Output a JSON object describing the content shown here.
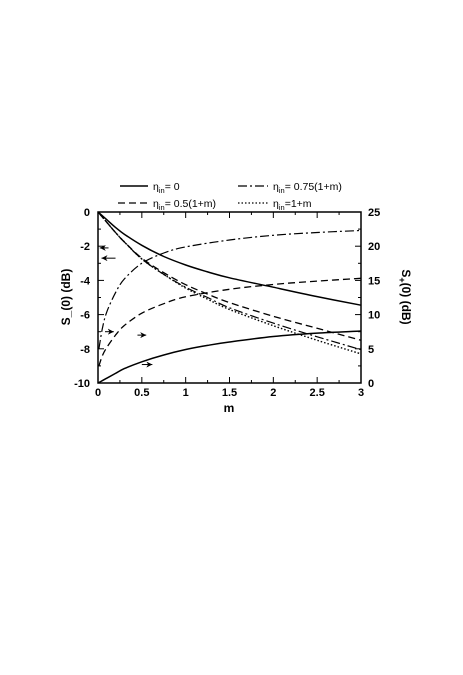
{
  "chart_data": {
    "type": "line",
    "title": "",
    "xlabel": "m",
    "ylabel_left": "S_(0)    (dB)",
    "ylabel_right_main": "S",
    "ylabel_right_sub": "+",
    "ylabel_right_rest": "(0)    (dB)",
    "xlim": [
      0,
      3
    ],
    "ylim_left": [
      -10,
      0
    ],
    "ylim_right": [
      0,
      25
    ],
    "xticks": [
      "0",
      "0.5",
      "1",
      "1.5",
      "2",
      "2.5",
      "3"
    ],
    "yticks_left": [
      "0",
      "-2",
      "-4",
      "-6",
      "-8",
      "-10"
    ],
    "yticks_right": [
      "25",
      "20",
      "15",
      "10",
      "5",
      "0"
    ],
    "grid": false,
    "legend_position": "top",
    "legend": [
      {
        "eta": "η",
        "sub": "in",
        "rest": "= 0",
        "style": "solid"
      },
      {
        "eta": "η",
        "sub": "in",
        "rest": "= 0.75(1+m)",
        "style": "dashdot"
      },
      {
        "eta": "η",
        "sub": "in",
        "rest": "= 0.5(1+m)",
        "style": "dashed"
      },
      {
        "eta": "η",
        "sub": "in",
        "rest": "=1+m",
        "style": "dotted"
      }
    ],
    "series": [
      {
        "style": "solid",
        "axis": "left",
        "x": [
          0,
          0.1,
          0.2,
          0.3,
          0.5,
          0.75,
          1,
          1.25,
          1.5,
          2,
          2.5,
          3
        ],
        "y": [
          0,
          -0.45,
          -0.9,
          -1.3,
          -1.95,
          -2.6,
          -3.1,
          -3.5,
          -3.85,
          -4.4,
          -4.95,
          -5.45
        ]
      },
      {
        "style": "dashdot",
        "axis": "left",
        "x": [
          0,
          0.1,
          0.2,
          0.3,
          0.5,
          0.75,
          1,
          1.25,
          1.5,
          2,
          2.5,
          3
        ],
        "y": [
          0,
          -0.6,
          -1.2,
          -1.75,
          -2.75,
          -3.65,
          -4.4,
          -5.0,
          -5.6,
          -6.5,
          -7.3,
          -8.05
        ]
      },
      {
        "style": "dashed",
        "axis": "left",
        "x": [
          0,
          0.1,
          0.2,
          0.3,
          0.5,
          0.75,
          1,
          1.25,
          1.5,
          2,
          2.5,
          3
        ],
        "y": [
          0,
          -0.6,
          -1.2,
          -1.75,
          -2.7,
          -3.55,
          -4.25,
          -4.8,
          -5.3,
          -6.1,
          -6.8,
          -7.5
        ]
      },
      {
        "style": "dotted",
        "axis": "left",
        "x": [
          0,
          0.1,
          0.2,
          0.3,
          0.5,
          0.75,
          1,
          1.25,
          1.5,
          2,
          2.5,
          3
        ],
        "y": [
          0,
          -0.6,
          -1.2,
          -1.75,
          -2.75,
          -3.65,
          -4.45,
          -5.1,
          -5.7,
          -6.65,
          -7.5,
          -8.3
        ]
      },
      {
        "style": "solid",
        "axis": "right",
        "x": [
          0,
          0.1,
          0.2,
          0.3,
          0.5,
          0.75,
          1,
          1.25,
          1.5,
          2,
          2.5,
          3
        ],
        "y": [
          0,
          0.7,
          1.4,
          2.1,
          3.1,
          4.1,
          4.9,
          5.5,
          6.0,
          6.8,
          7.3,
          7.6
        ]
      },
      {
        "style": "dashed",
        "axis": "right",
        "x": [
          0.01,
          0.05,
          0.1,
          0.2,
          0.3,
          0.5,
          0.75,
          1,
          1.5,
          2,
          2.5,
          3
        ],
        "y": [
          2.5,
          4.0,
          5.2,
          7.0,
          8.4,
          10.2,
          11.6,
          12.6,
          13.7,
          14.4,
          14.9,
          15.3
        ]
      },
      {
        "style": "dashdot",
        "axis": "right",
        "x": [
          0.01,
          0.05,
          0.1,
          0.2,
          0.3,
          0.5,
          0.75,
          1,
          1.5,
          2,
          2.5,
          3
        ],
        "y": [
          5.0,
          8.0,
          10.4,
          13.2,
          15.2,
          17.5,
          19.0,
          19.9,
          20.9,
          21.6,
          22.0,
          22.3
        ]
      }
    ]
  }
}
